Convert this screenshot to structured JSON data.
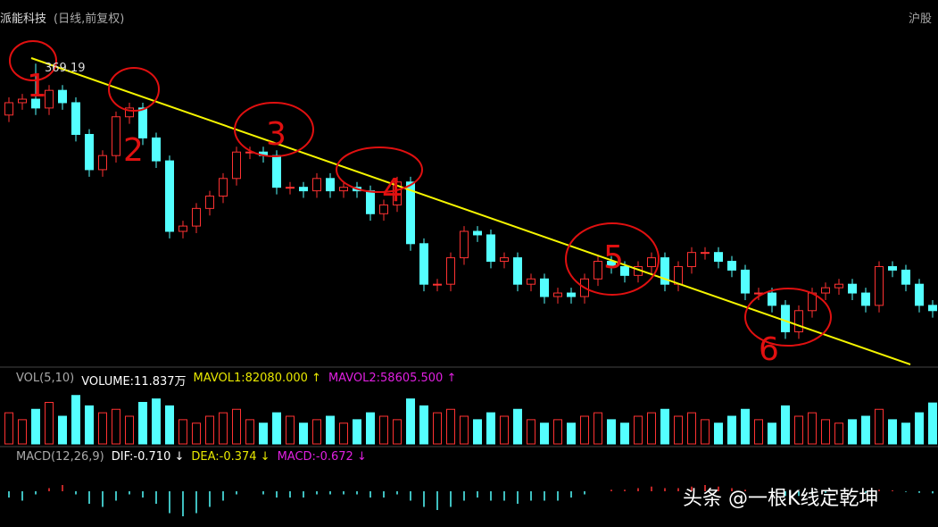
{
  "chart_data": {
    "type": "candlestick",
    "title": "派能科技",
    "subtitle": "(日线,前复权)",
    "market": "沪股",
    "open": [
      340,
      347,
      349,
      344,
      354,
      347,
      329,
      309,
      317,
      339,
      344,
      327,
      314,
      274,
      277,
      287,
      294,
      304,
      319,
      319,
      317,
      299,
      299,
      297,
      304,
      297,
      299,
      297,
      284,
      289,
      302,
      267,
      244,
      244,
      259,
      274,
      272,
      257,
      259,
      244,
      247,
      237,
      239,
      237,
      247,
      257,
      254,
      249,
      254,
      259,
      244,
      254,
      262,
      262,
      257,
      252,
      239,
      239,
      232,
      217,
      229,
      239,
      242,
      244,
      239,
      232,
      254,
      252,
      244,
      232
    ],
    "close": [
      347,
      349,
      344,
      354,
      347,
      329,
      309,
      317,
      339,
      344,
      327,
      314,
      274,
      277,
      287,
      294,
      304,
      319,
      319,
      317,
      299,
      299,
      297,
      304,
      297,
      299,
      297,
      284,
      289,
      302,
      267,
      244,
      244,
      259,
      274,
      272,
      257,
      259,
      244,
      247,
      237,
      239,
      237,
      247,
      257,
      254,
      249,
      254,
      259,
      244,
      254,
      262,
      262,
      257,
      252,
      239,
      239,
      232,
      217,
      229,
      239,
      242,
      244,
      239,
      232,
      254,
      252,
      244,
      232,
      229
    ],
    "high": [
      350,
      352,
      369.19,
      357,
      357,
      350,
      332,
      320,
      342,
      347,
      347,
      330,
      317,
      280,
      290,
      297,
      307,
      322,
      322,
      322,
      320,
      302,
      302,
      307,
      307,
      302,
      302,
      300,
      292,
      305,
      305,
      270,
      247,
      262,
      277,
      277,
      275,
      262,
      262,
      250,
      250,
      242,
      242,
      250,
      260,
      260,
      257,
      257,
      262,
      262,
      257,
      265,
      265,
      265,
      260,
      255,
      242,
      242,
      235,
      232,
      242,
      245,
      247,
      247,
      242,
      257,
      257,
      255,
      247,
      235
    ],
    "low": [
      336,
      343,
      340,
      340,
      343,
      325,
      305,
      305,
      313,
      335,
      323,
      310,
      270,
      270,
      273,
      283,
      290,
      300,
      315,
      313,
      295,
      295,
      293,
      293,
      293,
      293,
      293,
      280,
      280,
      285,
      263,
      240,
      240,
      240,
      255,
      268,
      253,
      253,
      240,
      240,
      233,
      233,
      233,
      233,
      243,
      250,
      245,
      245,
      250,
      240,
      240,
      250,
      258,
      253,
      248,
      235,
      235,
      228,
      213,
      213,
      225,
      235,
      238,
      235,
      228,
      228,
      248,
      240,
      228,
      225
    ],
    "up_color": "#ff3232",
    "down_color": "#54ffff",
    "ylim": [
      200,
      385
    ],
    "annotations": [
      "1",
      "2",
      "3",
      "4",
      "5",
      "6"
    ],
    "volume": {
      "label": "VOL(5,10)",
      "volume_text": "VOLUME:11.837万",
      "mavol1": "MAVOL1:82080.000 ↑",
      "mavol2": "MAVOL2:58605.500 ↑",
      "values": [
        9,
        7,
        10,
        12,
        8,
        14,
        11,
        9,
        10,
        8,
        12,
        13,
        11,
        7,
        6,
        8,
        9,
        10,
        7,
        6,
        9,
        8,
        6,
        7,
        8,
        6,
        7,
        9,
        8,
        7,
        13,
        11,
        9,
        10,
        8,
        7,
        9,
        8,
        10,
        7,
        6,
        7,
        6,
        8,
        9,
        7,
        6,
        8,
        9,
        10,
        8,
        9,
        7,
        6,
        8,
        10,
        7,
        6,
        11,
        8,
        9,
        7,
        6,
        7,
        8,
        10,
        7,
        6,
        9,
        11.837
      ],
      "ylim": [
        0,
        16
      ]
    },
    "macd": {
      "label": "MACD(12,26,9)",
      "dif": "DIF:-0.710 ↓",
      "dea": "DEA:-0.374 ↓",
      "macd_text": "MACD:-0.672 ↓",
      "values": [
        -2,
        -3,
        -1,
        1,
        2,
        -1,
        -4,
        -5,
        -3,
        -1,
        -2,
        -4,
        -7,
        -8,
        -7,
        -5,
        -3,
        -1,
        0,
        -1,
        -2,
        -2,
        -2,
        -1,
        -1,
        -1,
        -1,
        -2,
        -2,
        -1,
        -3,
        -5,
        -6,
        -5,
        -3,
        -2,
        -3,
        -3,
        -4,
        -3,
        -3,
        -3,
        -2,
        -1,
        0,
        0.5,
        0.5,
        1,
        1.5,
        1,
        1,
        1.5,
        2,
        1.5,
        1,
        0.5,
        0,
        -0.5,
        -1.5,
        -1.5,
        -1,
        -0.5,
        0,
        -0.2,
        -0.5,
        0.5,
        0.3,
        -0.2,
        -0.5,
        -0.672
      ],
      "ylim": [
        -10,
        10
      ]
    },
    "watermark": "头条 @一根K线定乾坤"
  }
}
